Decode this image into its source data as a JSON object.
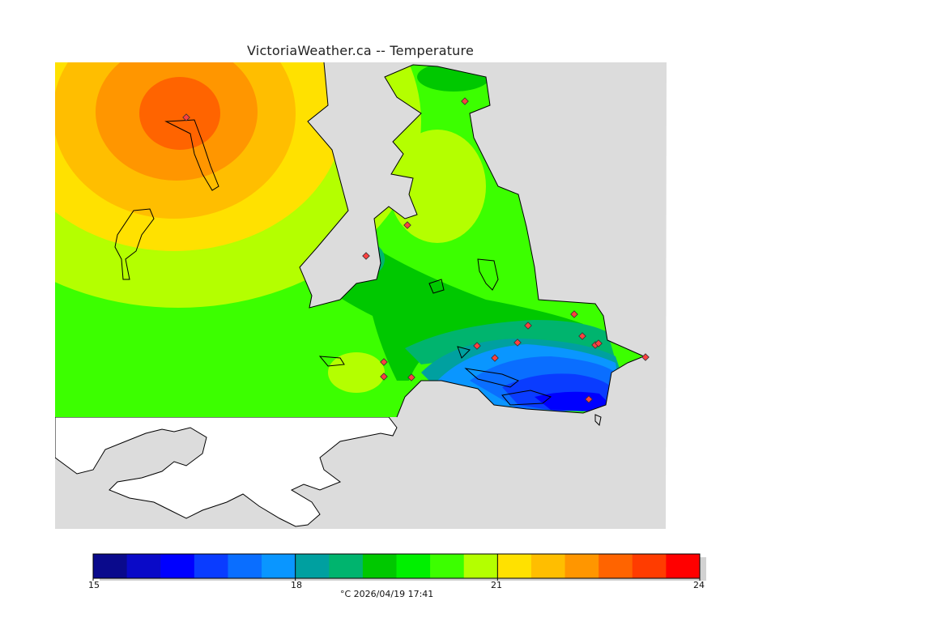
{
  "title": "VictoriaWeather.ca -- Temperature",
  "legend": {
    "min": 15,
    "max": 24,
    "tick_labels": [
      "15",
      "18",
      "21",
      "24"
    ],
    "tick_values": [
      15,
      18,
      21,
      24
    ],
    "colors": [
      "#0a0a8c",
      "#0a0ac8",
      "#0000ff",
      "#0a3cff",
      "#0a6eff",
      "#0a96ff",
      "#00a0a0",
      "#00b46e",
      "#00c800",
      "#00f000",
      "#3cff00",
      "#b4ff00",
      "#ffe100",
      "#ffbe00",
      "#ff9600",
      "#ff6400",
      "#ff3c00",
      "#ff0000"
    ]
  },
  "caption": "°C  2026/04/19 17:41",
  "colors": {
    "land_mask": "#dcdcdc",
    "water_mask": "#ffffff",
    "coastline": "#000000",
    "station_marker": "#ff4040"
  }
}
